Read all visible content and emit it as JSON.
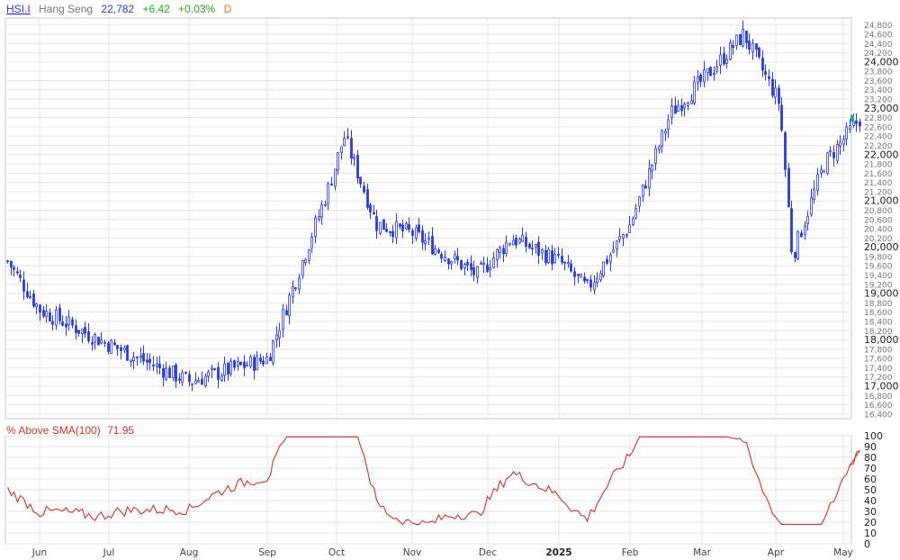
{
  "header": {
    "symbol": "HSI.I",
    "name": "Hang Seng",
    "last": "22,782",
    "change": "+6.42",
    "change_pct": "+0.03%",
    "period": "D"
  },
  "indicator": {
    "label": "% Above SMA(100)",
    "value": "71.95"
  },
  "colors": {
    "up": "#2a3fc9",
    "down": "#2a3fc9",
    "indicator_line": "#c0392b",
    "indicator_title": "#c0392b",
    "header_price": "#2a3fc9",
    "header_change": "#2aa12a",
    "header_period": "#e07a1a",
    "last_marker": "#2aa6a6",
    "grid": "#e6e6e6"
  },
  "chart_data": [
    {
      "type": "candlestick",
      "title": "HSI.I Hang Seng",
      "y_ticks": [
        "16,400",
        "16,600",
        "16,800",
        "17,000",
        "17,200",
        "17,400",
        "17,600",
        "17,800",
        "18,000",
        "18,200",
        "18,400",
        "18,600",
        "18,800",
        "19,000",
        "19,200",
        "19,400",
        "19,600",
        "19,800",
        "20,000",
        "20,200",
        "20,400",
        "20,600",
        "20,800",
        "21,000",
        "21,200",
        "21,400",
        "21,600",
        "21,800",
        "22,000",
        "22,200",
        "22,400",
        "22,600",
        "22,800",
        "23,000",
        "23,200",
        "23,400",
        "23,600",
        "23,800",
        "24,000",
        "24,200",
        "24,400",
        "24,600",
        "24,800"
      ],
      "y_major": [
        "17,000",
        "18,000",
        "19,000",
        "20,000",
        "21,000",
        "22,000",
        "23,000",
        "24,000"
      ],
      "x_labels": [
        "Jun",
        "Jul",
        "Aug",
        "Sep",
        "Oct",
        "Nov",
        "Dec",
        "2025",
        "Feb",
        "Mar",
        "Apr",
        "May"
      ],
      "ylim": [
        16300,
        24950
      ],
      "anchors": [
        {
          "m": "May-2024",
          "c": 19700
        },
        {
          "m": "Jun-2024",
          "c": 18650
        },
        {
          "m": "Jul-2024",
          "c": 17900
        },
        {
          "m": "Aug-2024",
          "c": 17100
        },
        {
          "m": "Sep-2024",
          "c": 17600
        },
        {
          "m": "Sep-30-2024",
          "c": 21300
        },
        {
          "m": "Oct-2024",
          "c": 22400
        },
        {
          "m": "Oct-2024-mid",
          "c": 20500
        },
        {
          "m": "Nov-2024",
          "c": 20300
        },
        {
          "m": "Dec-2024",
          "c": 19400
        },
        {
          "m": "Dec-2024-mid",
          "c": 20200
        },
        {
          "m": "2025",
          "c": 19700
        },
        {
          "m": "Jan-2025-mid",
          "c": 19100
        },
        {
          "m": "Feb-2025",
          "c": 20500
        },
        {
          "m": "Feb-2025-end",
          "c": 22900
        },
        {
          "m": "Mar-2025",
          "c": 23600
        },
        {
          "m": "Mar-2025-mid",
          "c": 24600
        },
        {
          "m": "Apr-2025",
          "c": 23100
        },
        {
          "m": "Apr-2025-crash",
          "c": 19800
        },
        {
          "m": "Apr-2025-late",
          "c": 21800
        },
        {
          "m": "May-2025",
          "c": 22782
        }
      ]
    },
    {
      "type": "line",
      "title": "% Above SMA(100)",
      "y_ticks": [
        "0",
        "10",
        "20",
        "30",
        "40",
        "50",
        "60",
        "70",
        "80",
        "90",
        "100"
      ],
      "ylim": [
        0,
        100
      ],
      "current": 71.95
    }
  ]
}
